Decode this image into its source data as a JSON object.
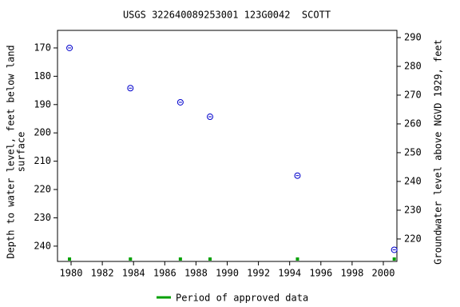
{
  "chart_data": {
    "type": "scatter",
    "title": "USGS 322640089253001 123G0042  SCOTT",
    "ylabel": [
      "Depth to water level, feet below land",
      "surface"
    ],
    "y2label": "Groundwater level above NGVD 1929, feet",
    "x": [
      1979.9,
      1983.8,
      1987.0,
      1988.9,
      1994.5,
      2000.7
    ],
    "values": [
      170.0,
      184.2,
      189.2,
      194.3,
      215.1,
      241.3
    ],
    "color": "#0000cc",
    "xlim": [
      1979.13,
      2000.87
    ],
    "xticks": [
      1980,
      1982,
      1984,
      1986,
      1988,
      1990,
      1992,
      1994,
      1996,
      1998,
      2000
    ],
    "ylim": [
      163.8,
      245.4
    ],
    "yticks": [
      170,
      180,
      190,
      200,
      210,
      220,
      230,
      240
    ],
    "y_inverted": true,
    "y2lim": [
      212.2,
      292.5
    ],
    "y2ticks": [
      220,
      230,
      240,
      250,
      260,
      270,
      280,
      290
    ],
    "approved": {
      "name": "Period of approved data",
      "color": "#00a000",
      "x": [
        1979.9,
        1983.8,
        1987.0,
        1988.9,
        1994.5,
        2000.7
      ]
    }
  }
}
